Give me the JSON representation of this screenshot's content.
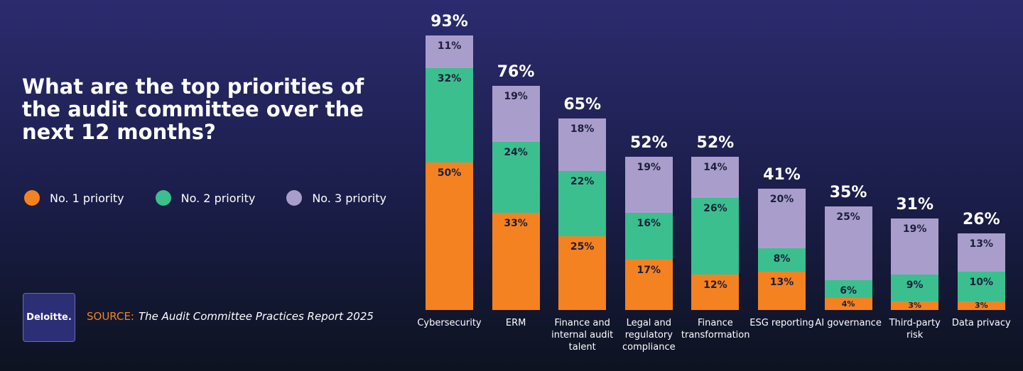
{
  "title": "What are the top priorities of the audit committee over the next 12 months?",
  "source_label": "SOURCE:",
  "source_text": "The Audit Committee Practices Report 2025",
  "logo": "Deloitte.",
  "chart_data": {
    "type": "stacked-bar",
    "categories": [
      "Cybersecurity",
      "ERM",
      "Finance and internal audit talent",
      "Legal and regulatory compliance",
      "Finance transformation",
      "ESG reporting",
      "AI governance",
      "Third-party risk",
      "Data privacy"
    ],
    "series": [
      {
        "name": "No. 1 priority",
        "color": "#f58220",
        "values": [
          50,
          33,
          25,
          17,
          12,
          13,
          4,
          3,
          3
        ],
        "value_labels": [
          "50%",
          "33%",
          "25%",
          "17%",
          "12%",
          "13%",
          "4%",
          "3%",
          "3%"
        ]
      },
      {
        "name": "No. 2 priority",
        "color": "#3cbf8e",
        "values": [
          32,
          24,
          22,
          16,
          26,
          8,
          6,
          9,
          10
        ],
        "value_labels": [
          "32%",
          "24%",
          "22%",
          "16%",
          "26%",
          "8%",
          "6%",
          "9%",
          "10%"
        ]
      },
      {
        "name": "No. 3 priority",
        "color": "#a99ecb",
        "values": [
          11,
          19,
          18,
          19,
          14,
          20,
          25,
          19,
          13
        ],
        "value_labels": [
          "11%",
          "19%",
          "18%",
          "19%",
          "14%",
          "20%",
          "25%",
          "19%",
          "13%"
        ]
      }
    ],
    "totals": [
      93,
      76,
      65,
      52,
      52,
      41,
      35,
      31,
      26
    ],
    "total_labels": [
      "93%",
      "76%",
      "65%",
      "52%",
      "52%",
      "41%",
      "35%",
      "31%",
      "26%"
    ],
    "legend": "left"
  }
}
